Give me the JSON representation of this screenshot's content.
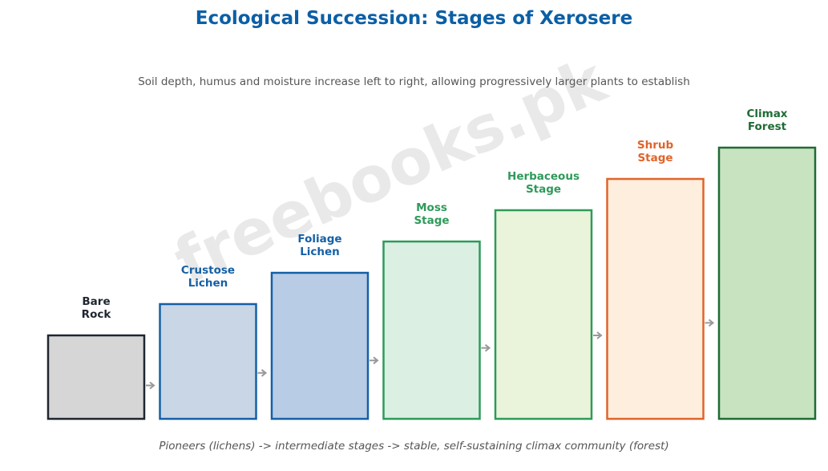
{
  "title": "Ecological Succession: Stages of Xerosere",
  "subtitle": "Soil depth, humus and moisture increase left to right, allowing progressively larger plants to establish",
  "footer": "Pioneers (lichens) -> intermediate stages -> stable, self-sustaining climax community (forest)",
  "watermark": "freebooks.pk",
  "stages": [
    {
      "label_lines": [
        "Bare",
        "Rock"
      ],
      "fill": "#d6d6d6",
      "stroke": "#1f2630",
      "text_color": "#1f2630",
      "level": 1
    },
    {
      "label_lines": [
        "Crustose",
        "Lichen"
      ],
      "fill": "#c9d6e6",
      "stroke": "#1560a6",
      "text_color": "#1560a6",
      "level": 2
    },
    {
      "label_lines": [
        "Foliage",
        "Lichen"
      ],
      "fill": "#b8cce6",
      "stroke": "#1560a6",
      "text_color": "#1560a6",
      "level": 3
    },
    {
      "label_lines": [
        "Moss",
        "Stage"
      ],
      "fill": "#dbefe3",
      "stroke": "#2e9a5a",
      "text_color": "#2e9a5a",
      "level": 4
    },
    {
      "label_lines": [
        "Herbaceous",
        "Stage"
      ],
      "fill": "#eaf4da",
      "stroke": "#2e9a5a",
      "text_color": "#2e9a5a",
      "level": 5
    },
    {
      "label_lines": [
        "Shrub",
        "Stage"
      ],
      "fill": "#fdeedd",
      "stroke": "#e0642a",
      "text_color": "#e0642a",
      "level": 6
    },
    {
      "label_lines": [
        "Climax",
        "Forest"
      ],
      "fill": "#c8e3c0",
      "stroke": "#1f6b35",
      "text_color": "#1f6b35",
      "level": 7
    }
  ],
  "arrow_color": "#999999"
}
